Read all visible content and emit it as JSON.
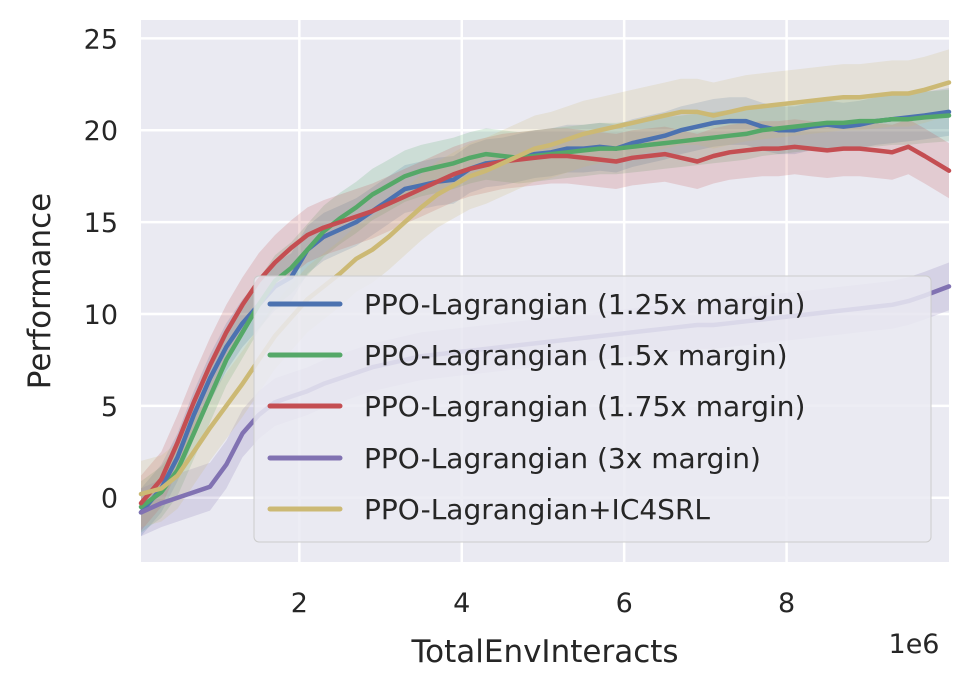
{
  "chart_data": {
    "type": "line",
    "title": "",
    "xlabel": "TotalEnvInteracts",
    "ylabel": "Performance",
    "x_offset_label": "1e6",
    "xlim": [
      0.05,
      10.0
    ],
    "ylim": [
      -3.5,
      26.0
    ],
    "xticks": [
      2,
      4,
      6,
      8
    ],
    "xtick_labels": [
      "2",
      "4",
      "6",
      "8"
    ],
    "yticks": [
      0,
      5,
      10,
      15,
      20,
      25
    ],
    "ytick_labels": [
      "0",
      "5",
      "10",
      "15",
      "20",
      "25"
    ],
    "grid": true,
    "legend_position": "lower-right",
    "series": [
      {
        "name": "PPO-Lagrangian (1.25x margin)",
        "color": "#4c72b0",
        "x": [
          0.05,
          0.3,
          0.5,
          0.7,
          0.9,
          1.1,
          1.3,
          1.5,
          1.7,
          1.9,
          2.1,
          2.3,
          2.5,
          2.7,
          2.9,
          3.1,
          3.3,
          3.5,
          3.7,
          3.9,
          4.1,
          4.3,
          4.5,
          4.7,
          4.9,
          5.1,
          5.3,
          5.5,
          5.7,
          5.9,
          6.1,
          6.3,
          6.5,
          6.7,
          6.9,
          7.1,
          7.3,
          7.5,
          7.7,
          7.9,
          8.1,
          8.3,
          8.5,
          8.7,
          8.9,
          9.1,
          9.3,
          9.5,
          9.7,
          10.0
        ],
        "y": [
          -0.8,
          0.5,
          2.2,
          4.5,
          6.5,
          8.2,
          9.5,
          10.5,
          11.5,
          12.0,
          13.5,
          14.2,
          14.6,
          15.0,
          15.6,
          16.2,
          16.8,
          17.0,
          17.2,
          17.3,
          17.9,
          18.2,
          18.3,
          18.5,
          18.7,
          18.8,
          19.0,
          19.0,
          19.1,
          19.0,
          19.3,
          19.5,
          19.7,
          20.0,
          20.2,
          20.4,
          20.5,
          20.5,
          20.2,
          20.0,
          20.0,
          20.2,
          20.3,
          20.2,
          20.3,
          20.5,
          20.6,
          20.7,
          20.8,
          21.0
        ],
        "band_halfwidth": 1.3
      },
      {
        "name": "PPO-Lagrangian (1.5x margin)",
        "color": "#55a868",
        "x": [
          0.05,
          0.3,
          0.5,
          0.7,
          0.9,
          1.1,
          1.3,
          1.5,
          1.7,
          1.9,
          2.1,
          2.3,
          2.5,
          2.7,
          2.9,
          3.1,
          3.3,
          3.5,
          3.7,
          3.9,
          4.1,
          4.3,
          4.5,
          4.7,
          4.9,
          5.1,
          5.3,
          5.5,
          5.7,
          5.9,
          6.1,
          6.3,
          6.5,
          6.7,
          6.9,
          7.1,
          7.3,
          7.5,
          7.7,
          7.9,
          8.1,
          8.3,
          8.5,
          8.7,
          8.9,
          9.1,
          9.3,
          9.5,
          9.7,
          10.0
        ],
        "y": [
          -0.5,
          0.3,
          1.5,
          3.5,
          5.5,
          7.5,
          9.0,
          10.5,
          11.8,
          12.5,
          13.5,
          14.5,
          15.2,
          15.8,
          16.5,
          17.0,
          17.5,
          17.8,
          18.0,
          18.2,
          18.5,
          18.7,
          18.6,
          18.5,
          18.6,
          18.7,
          18.8,
          18.9,
          19.0,
          19.0,
          19.1,
          19.2,
          19.3,
          19.4,
          19.5,
          19.6,
          19.7,
          19.8,
          20.0,
          20.1,
          20.2,
          20.3,
          20.4,
          20.4,
          20.5,
          20.5,
          20.6,
          20.6,
          20.7,
          20.8
        ],
        "band_halfwidth": 1.4
      },
      {
        "name": "PPO-Lagrangian (1.75x margin)",
        "color": "#c44e52",
        "x": [
          0.05,
          0.3,
          0.5,
          0.7,
          0.9,
          1.1,
          1.3,
          1.5,
          1.7,
          1.9,
          2.1,
          2.3,
          2.5,
          2.7,
          2.9,
          3.1,
          3.3,
          3.5,
          3.7,
          3.9,
          4.1,
          4.3,
          4.5,
          4.7,
          4.9,
          5.1,
          5.3,
          5.5,
          5.7,
          5.9,
          6.1,
          6.3,
          6.5,
          6.7,
          6.9,
          7.1,
          7.3,
          7.5,
          7.7,
          7.9,
          8.1,
          8.3,
          8.5,
          8.7,
          8.9,
          9.1,
          9.3,
          9.5,
          9.7,
          10.0
        ],
        "y": [
          -0.3,
          1.0,
          3.0,
          5.2,
          7.2,
          9.0,
          10.5,
          11.8,
          12.8,
          13.6,
          14.3,
          14.7,
          15.0,
          15.3,
          15.6,
          16.0,
          16.4,
          16.8,
          17.2,
          17.6,
          17.9,
          18.1,
          18.3,
          18.4,
          18.5,
          18.6,
          18.6,
          18.5,
          18.4,
          18.3,
          18.5,
          18.6,
          18.7,
          18.5,
          18.3,
          18.6,
          18.8,
          18.9,
          19.0,
          19.0,
          19.1,
          19.0,
          18.9,
          19.0,
          19.0,
          18.9,
          18.8,
          19.1,
          18.6,
          17.8
        ],
        "band_halfwidth": 1.5
      },
      {
        "name": "PPO-Lagrangian (3x margin)",
        "color": "#8172b2",
        "x": [
          0.05,
          0.3,
          0.5,
          0.7,
          0.9,
          1.1,
          1.3,
          1.5,
          1.7,
          1.9,
          2.1,
          2.3,
          2.5,
          2.7,
          2.9,
          3.1,
          3.3,
          3.5,
          3.7,
          3.9,
          4.1,
          4.3,
          4.5,
          4.7,
          4.9,
          5.1,
          5.3,
          5.5,
          5.7,
          5.9,
          6.1,
          6.3,
          6.5,
          6.7,
          6.9,
          7.1,
          7.3,
          7.5,
          7.7,
          7.9,
          8.1,
          8.3,
          8.5,
          8.7,
          8.9,
          9.1,
          9.3,
          9.5,
          9.7,
          10.0
        ],
        "y": [
          -0.8,
          -0.3,
          0.0,
          0.3,
          0.6,
          1.8,
          3.5,
          4.5,
          5.2,
          5.5,
          5.8,
          6.2,
          6.5,
          6.8,
          7.1,
          7.3,
          7.5,
          7.7,
          7.8,
          7.9,
          8.0,
          8.1,
          8.2,
          8.3,
          8.4,
          8.5,
          8.6,
          8.7,
          8.8,
          8.9,
          9.0,
          9.1,
          9.2,
          9.3,
          9.4,
          9.4,
          9.5,
          9.6,
          9.7,
          9.8,
          9.9,
          10.0,
          10.1,
          10.2,
          10.3,
          10.4,
          10.5,
          10.7,
          11.0,
          11.5
        ],
        "band_halfwidth": 1.3
      },
      {
        "name": "PPO-Lagrangian+IC4SRL",
        "color": "#ccb974",
        "x": [
          0.05,
          0.3,
          0.5,
          0.7,
          0.9,
          1.1,
          1.3,
          1.5,
          1.7,
          1.9,
          2.1,
          2.3,
          2.5,
          2.7,
          2.9,
          3.1,
          3.3,
          3.5,
          3.7,
          3.9,
          4.1,
          4.3,
          4.5,
          4.7,
          4.9,
          5.1,
          5.3,
          5.5,
          5.7,
          5.9,
          6.1,
          6.3,
          6.5,
          6.7,
          6.9,
          7.1,
          7.3,
          7.5,
          7.7,
          7.9,
          8.1,
          8.3,
          8.5,
          8.7,
          8.9,
          9.1,
          9.3,
          9.5,
          9.7,
          10.0
        ],
        "y": [
          0.2,
          0.5,
          1.2,
          2.5,
          3.8,
          5.0,
          6.2,
          7.5,
          8.8,
          9.8,
          10.8,
          11.5,
          12.2,
          13.0,
          13.5,
          14.2,
          15.0,
          15.8,
          16.5,
          17.0,
          17.5,
          17.8,
          18.2,
          18.6,
          19.0,
          19.2,
          19.5,
          19.8,
          20.0,
          20.2,
          20.4,
          20.6,
          20.8,
          21.0,
          21.0,
          20.8,
          21.0,
          21.2,
          21.3,
          21.4,
          21.5,
          21.6,
          21.7,
          21.8,
          21.8,
          21.9,
          22.0,
          22.0,
          22.2,
          22.6
        ],
        "band_halfwidth": 1.8
      }
    ]
  }
}
